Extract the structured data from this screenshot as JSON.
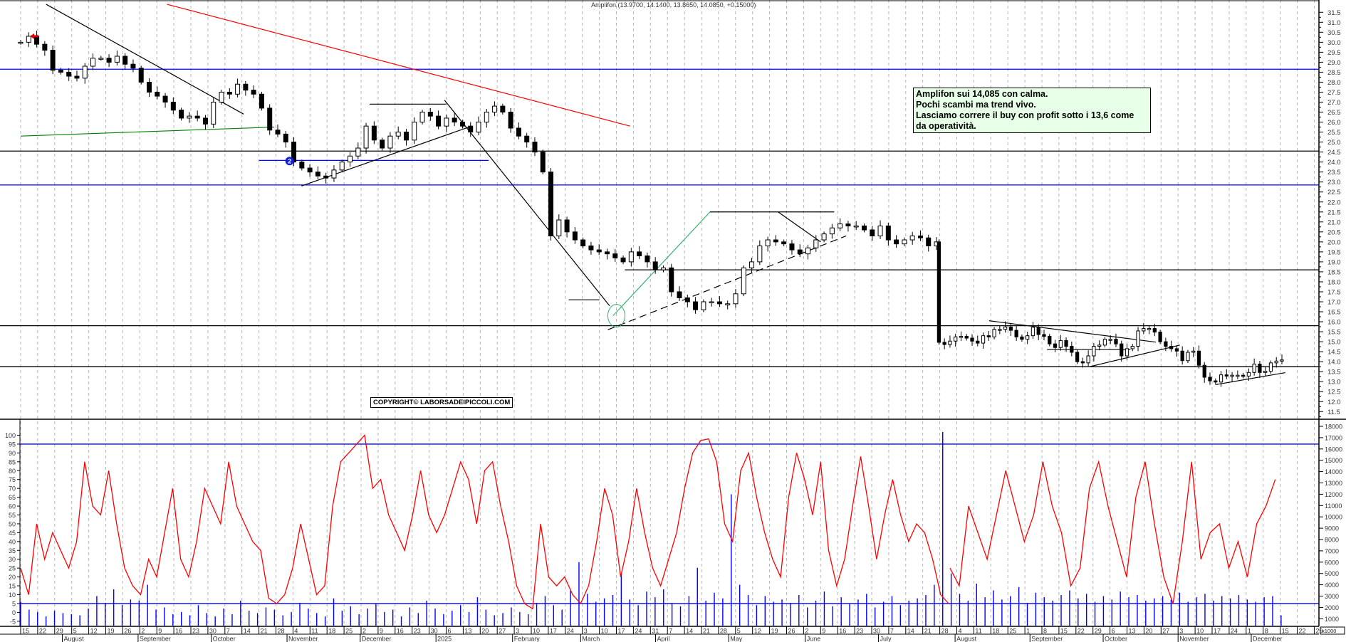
{
  "header": {
    "title": "Amplifon (13.9700, 14.1400, 13.8650, 14.0850, +0.15000)"
  },
  "note": {
    "lines": [
      "Amplifon sui 14,085 con calma.",
      "Pochi scambi ma trend vivo.",
      "Lasciamo correre il buy con profit sotto i 13,6 come",
      "da operatività."
    ]
  },
  "copyright": "COPYRIGHT© LABORSADEIPICCOLI.COM",
  "marker_label": "2",
  "colors": {
    "up": "#ffffff",
    "down": "#000000",
    "oscillator": "#ff0000",
    "volume": "#0000ff",
    "level_blue": "#0000ff",
    "level_black": "#000000",
    "trend_red": "#ff0000",
    "trend_green": "#008000",
    "trend_lightgreen": "#33b06a",
    "grid": "#b4b4b4"
  },
  "chart_data": {
    "type": "candlestick",
    "title": "Amplifon",
    "x_unit": "weeks since 15 Jul 2024",
    "price_segments": [
      {
        "start_week": 0,
        "step_week": 0.472,
        "close": [
          30.0,
          30.3,
          29.9,
          29.6,
          28.6,
          28.5,
          28.3,
          28.2,
          28.8,
          29.2,
          29.2,
          29.0,
          29.3,
          28.9,
          28.7,
          28.0,
          27.5,
          27.3,
          27.0,
          26.6,
          26.2,
          26.3,
          26.2,
          25.9,
          27.0,
          27.5,
          27.4,
          27.9,
          27.6,
          27.4,
          26.7,
          25.6,
          25.4,
          25.0,
          24.0,
          23.7,
          23.5,
          23.3,
          23.2,
          23.6,
          24.0,
          24.3,
          24.7,
          25.8,
          25.1,
          24.7,
          25.3,
          25.5,
          25.1,
          26.0,
          26.5,
          26.3,
          25.8,
          26.2,
          26.0,
          25.8,
          25.5,
          26.0,
          26.5,
          26.8,
          26.5,
          25.7,
          25.3,
          25.0,
          24.5,
          23.5,
          20.3,
          21.1,
          20.5,
          20.1,
          19.8,
          19.6,
          19.5,
          19.4,
          19.2,
          19.0,
          19.5,
          19.3,
          19.0,
          18.6,
          18.7,
          17.5,
          17.2,
          17.0,
          16.6,
          17.0,
          17.0,
          16.9,
          16.9,
          17.4,
          18.7,
          19.0,
          19.8,
          20.1,
          20.0,
          19.9,
          19.6,
          19.4,
          19.7,
          20.1,
          20.4,
          20.7,
          20.9,
          20.8,
          20.8,
          20.6,
          20.3,
          20.8,
          20.1,
          19.9,
          20.1,
          20.3,
          20.2,
          19.8,
          20.0
        ]
      },
      {
        "start_week": 53.95,
        "step_week": 0.325,
        "close": [
          14.97,
          14.86,
          15.03,
          15.24,
          15.27,
          15.18,
          15.03,
          14.93,
          15.3,
          15.24,
          15.62,
          15.62,
          15.74,
          15.57,
          15.24,
          15.12,
          15.3,
          15.72,
          15.36,
          15.27,
          14.89,
          14.71,
          15.06,
          14.77,
          14.47,
          14.0,
          13.94,
          14.29,
          14.77,
          14.83,
          15.12,
          15.12,
          14.89,
          14.29,
          14.65,
          14.77,
          15.54,
          15.66,
          15.66,
          15.48,
          15.0,
          14.77,
          14.65,
          14.53,
          14.05,
          14.47,
          14.53,
          13.82,
          13.22,
          13.04,
          12.98,
          13.34,
          13.28,
          13.32,
          13.32,
          13.28,
          13.46,
          13.88,
          13.46,
          13.52,
          13.94,
          14.03,
          14.085
        ]
      }
    ],
    "last": {
      "open": 13.97,
      "high": 14.14,
      "low": 13.865,
      "close": 14.085,
      "change": 0.15
    },
    "price_ylim": [
      11.5,
      31.5
    ],
    "price_ticks": [
      31.5,
      31.0,
      30.5,
      30.0,
      29.5,
      29.0,
      28.5,
      28.0,
      27.5,
      27.0,
      26.5,
      26.0,
      25.5,
      25.0,
      24.5,
      24.0,
      23.5,
      23.0,
      22.5,
      22.0,
      21.5,
      21.0,
      20.5,
      20.0,
      19.5,
      19.0,
      18.5,
      18.0,
      17.5,
      17.0,
      16.5,
      16.0,
      15.5,
      15.0,
      14.5,
      14.0,
      13.5,
      13.0,
      12.5,
      12.0,
      11.5
    ],
    "levels": [
      {
        "price": 28.65,
        "color": "blue"
      },
      {
        "price": 24.55,
        "color": "black"
      },
      {
        "price": 22.85,
        "color": "blue"
      },
      {
        "price": 18.6,
        "color": "black",
        "from_week": 35.5
      },
      {
        "price": 15.8,
        "color": "black"
      },
      {
        "price": 13.75,
        "color": "black"
      },
      {
        "price": 24.08,
        "color": "blue",
        "from_week": 14.0,
        "to_week": 27.5
      }
    ],
    "trendlines": [
      {
        "w1": 1.5,
        "p1": 31.9,
        "w2": 13.1,
        "p2": 26.4,
        "color": "black"
      },
      {
        "w1": 8.6,
        "p1": 31.9,
        "w2": 35.8,
        "p2": 25.8,
        "color": "red"
      },
      {
        "w1": 0,
        "p1": 25.3,
        "w2": 14.9,
        "p2": 25.75,
        "color": "green"
      },
      {
        "w1": 16.5,
        "p1": 22.8,
        "w2": 26.5,
        "p2": 25.8,
        "color": "black"
      },
      {
        "w1": 20.5,
        "p1": 26.9,
        "w2": 25.0,
        "p2": 26.9,
        "color": "black"
      },
      {
        "w1": 24.9,
        "p1": 27.1,
        "w2": 34.6,
        "p2": 16.8,
        "color": "black"
      },
      {
        "w1": 32.2,
        "p1": 17.1,
        "w2": 34.0,
        "p2": 17.1,
        "color": "black"
      },
      {
        "w1": 34.5,
        "p1": 15.6,
        "w2": 48.5,
        "p2": 20.3,
        "color": "black",
        "dashed": true
      },
      {
        "w1": 34.8,
        "p1": 16.3,
        "w2": 40.5,
        "p2": 21.5,
        "color": "lightgreen"
      },
      {
        "w1": 40.5,
        "p1": 21.5,
        "w2": 47.8,
        "p2": 21.5,
        "color": "black"
      },
      {
        "w1": 44.5,
        "p1": 21.5,
        "w2": 47.0,
        "p2": 20.0,
        "color": "black"
      },
      {
        "w1": 56.9,
        "p1": 16.05,
        "w2": 66.7,
        "p2": 14.98,
        "color": "black"
      },
      {
        "w1": 60.3,
        "p1": 14.61,
        "w2": 65.2,
        "p2": 14.61,
        "color": "black"
      },
      {
        "w1": 62.8,
        "p1": 13.75,
        "w2": 68.1,
        "p2": 14.83,
        "color": "black"
      },
      {
        "w1": 70.2,
        "p1": 12.85,
        "w2": 74.3,
        "p2": 13.45,
        "color": "black"
      }
    ],
    "oscillator": {
      "ylim": [
        -5,
        100
      ],
      "ticks": [
        100,
        95,
        90,
        85,
        80,
        75,
        70,
        65,
        60,
        55,
        50,
        45,
        40,
        35,
        30,
        25,
        20,
        15,
        10,
        5,
        0,
        -5
      ],
      "levels": [
        95,
        5
      ],
      "segments": [
        {
          "start_week": 0,
          "step_week": 0.47,
          "values": [
            25,
            10,
            50,
            30,
            45,
            35,
            25,
            40,
            85,
            60,
            55,
            80,
            50,
            25,
            15,
            10,
            30,
            20,
            45,
            70,
            30,
            20,
            40,
            70,
            60,
            50,
            85,
            60,
            50,
            40,
            35,
            8,
            5,
            10,
            25,
            50,
            30,
            10,
            15,
            60,
            85,
            90,
            95,
            100,
            70,
            75,
            55,
            45,
            35,
            55,
            80,
            55,
            45,
            55,
            70,
            85,
            75,
            50,
            80,
            85,
            60,
            40,
            15,
            5,
            2,
            50,
            20,
            15,
            20,
            10,
            5,
            15,
            40,
            70,
            55,
            20,
            40,
            70,
            45,
            25,
            15,
            30,
            45,
            70,
            90,
            97,
            98,
            85,
            50,
            40,
            80,
            90,
            65,
            45,
            30,
            20,
            65,
            90,
            75,
            55,
            85,
            35,
            15,
            30,
            60,
            88,
            60,
            30,
            55,
            75,
            55,
            40,
            50,
            45,
            30,
            10,
            5
          ]
        },
        {
          "start_week": 54.6,
          "step_week": 0.546,
          "values": [
            25,
            15,
            60,
            45,
            30,
            55,
            80,
            60,
            40,
            55,
            85,
            60,
            45,
            15,
            25,
            70,
            85,
            60,
            40,
            20,
            65,
            85,
            50,
            20,
            5,
            40,
            85,
            30,
            45,
            50,
            25,
            40,
            20,
            50,
            60,
            75
          ]
        }
      ]
    },
    "volume": {
      "unit": "x1000",
      "ticks": [
        18000,
        17000,
        16000,
        15000,
        14000,
        13000,
        12000,
        11000,
        10000,
        9000,
        8000,
        7000,
        6000,
        5000,
        4000,
        3000,
        2000,
        1000
      ],
      "start_week": 0,
      "step_week": 0.497,
      "values": [
        2.5,
        1.8,
        1.6,
        1.2,
        1.7,
        1.5,
        1.4,
        1.3,
        1.9,
        3.0,
        2.4,
        3.6,
        2.2,
        2.7,
        2.6,
        4.0,
        1.8,
        2.0,
        1.4,
        1.6,
        1.3,
        2.2,
        1.5,
        1.2,
        1.9,
        1.4,
        2.6,
        1.7,
        1.5,
        2.0,
        1.8,
        1.3,
        1.6,
        2.4,
        1.9,
        1.5,
        1.2,
        2.8,
        1.7,
        2.1,
        1.4,
        1.9,
        2.3,
        1.6,
        1.8,
        1.2,
        2.0,
        1.5,
        2.6,
        1.9,
        1.4,
        1.7,
        2.2,
        1.6,
        2.9,
        1.8,
        1.3,
        1.5,
        2.0,
        1.6,
        1.4,
        2.4,
        3.0,
        2.2,
        1.8,
        3.5,
        6.0,
        3.2,
        2.5,
        2.8,
        3.1,
        5.0,
        2.7,
        2.2,
        3.4,
        2.9,
        3.6,
        2.4,
        2.1,
        3.0,
        5.5,
        2.6,
        3.3,
        2.8,
        12.0,
        4.0,
        3.1,
        2.2,
        3.0,
        2.5,
        2.7,
        2.4,
        3.1,
        2.0,
        2.6,
        3.4,
        2.1,
        2.9,
        2.3,
        2.7,
        3.2,
        2.0,
        2.5,
        3.0,
        2.2,
        2.6,
        2.8,
        3.1,
        4.0,
        17.5,
        5.0,
        3.2,
        2.6,
        4.1,
        2.9,
        3.5,
        2.7,
        3.0,
        3.8,
        2.4,
        3.3,
        2.9,
        2.6,
        3.1,
        3.5,
        2.8,
        3.2,
        2.5,
        3.0,
        2.7,
        3.4,
        2.9,
        3.1,
        2.6,
        2.8,
        3.0,
        2.7,
        3.3,
        2.5,
        2.9,
        3.2,
        2.6,
        3.0,
        2.8,
        3.1,
        2.7,
        2.5,
        2.9,
        3.0,
        1.3
      ]
    },
    "x_day_labels": [
      "15",
      "22",
      "29",
      "5",
      "12",
      "19",
      "26",
      "2",
      "9",
      "16",
      "23",
      "30",
      "7",
      "14",
      "21",
      "28",
      "4",
      "11",
      "18",
      "25",
      "2",
      "9",
      "16",
      "23",
      "30",
      "6",
      "13",
      "20",
      "27",
      "3",
      "10",
      "17",
      "24",
      "3",
      "10",
      "17",
      "24",
      "31",
      "7",
      "14",
      "21",
      "28",
      "5",
      "12",
      "19",
      "26",
      "2",
      "9",
      "16",
      "23",
      "30",
      "7",
      "14",
      "21",
      "28",
      "4",
      "11",
      "18",
      "25",
      "1",
      "8",
      "15",
      "22",
      "29",
      "6",
      "13",
      "20",
      "27",
      "3",
      "10",
      "17",
      "24",
      "1",
      "8",
      "15",
      "22",
      "29"
    ],
    "x_month_labels": [
      {
        "label": "August",
        "week": 2.45
      },
      {
        "label": "September",
        "week": 6.9
      },
      {
        "label": "October",
        "week": 11.2
      },
      {
        "label": "November",
        "week": 15.65
      },
      {
        "label": "December",
        "week": 19.95
      },
      {
        "label": "2025",
        "week": 24.4
      },
      {
        "label": "February",
        "week": 28.9
      },
      {
        "label": "March",
        "week": 32.9
      },
      {
        "label": "April",
        "week": 37.3
      },
      {
        "label": "May",
        "week": 41.6
      },
      {
        "label": "June",
        "week": 46.1
      },
      {
        "label": "July",
        "week": 50.4
      },
      {
        "label": "August",
        "week": 54.9
      },
      {
        "label": "September",
        "week": 59.3
      },
      {
        "label": "October",
        "week": 63.6
      },
      {
        "label": "November",
        "week": 68.0
      },
      {
        "label": "December",
        "week": 72.3
      }
    ],
    "marker": {
      "week": 15.8,
      "price": 24.05
    },
    "start_arrow": {
      "week": 0.8,
      "price": 30.3
    }
  }
}
